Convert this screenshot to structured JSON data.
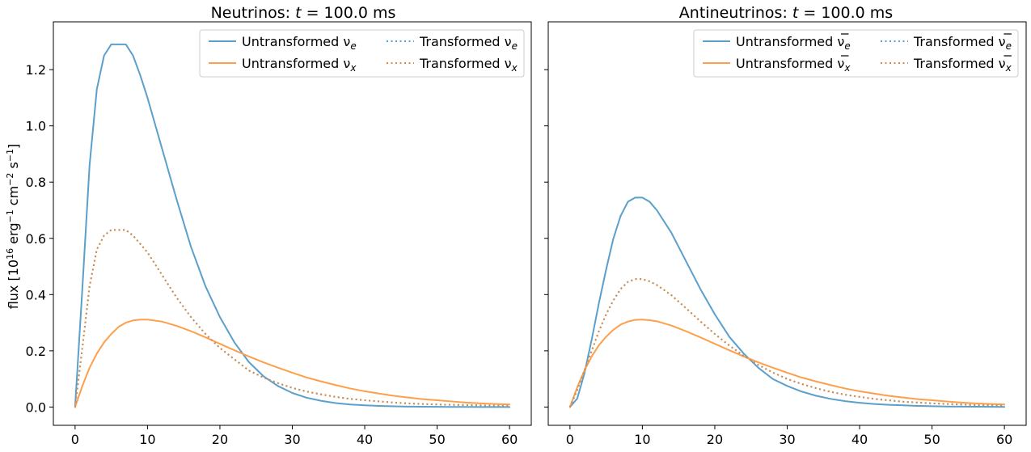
{
  "chart_data": [
    {
      "type": "line",
      "title": "Neutrinos: t = 100.0 ms",
      "title_parts": {
        "prefix": "Neutrinos: ",
        "var": "t",
        "suffix": " = 100.0 ms"
      },
      "ylabel": "flux [10",
      "ylabel_parts": {
        "a": "flux [10",
        "b": "16",
        "c": " erg",
        "d": "−1",
        "e": " cm",
        "f": "−2",
        "g": " s",
        "h": "−1",
        "i": "]"
      },
      "xlim": [
        -3,
        63
      ],
      "ylim": [
        -0.065,
        1.37
      ],
      "xticks": [
        "0",
        "10",
        "20",
        "30",
        "40",
        "50",
        "60"
      ],
      "xtick_values": [
        0,
        10,
        20,
        30,
        40,
        50,
        60
      ],
      "yticks": [
        "0.0",
        "0.2",
        "0.4",
        "0.6",
        "0.8",
        "1.0",
        "1.2"
      ],
      "ytick_values": [
        0,
        0.2,
        0.4,
        0.6,
        0.8,
        1.0,
        1.2
      ],
      "grid": false,
      "legend": "top-right",
      "x": [
        0,
        1,
        2,
        3,
        4,
        5,
        6,
        7,
        8,
        9,
        10,
        12,
        14,
        16,
        18,
        20,
        22,
        24,
        26,
        28,
        30,
        32,
        34,
        36,
        38,
        40,
        42,
        44,
        46,
        48,
        50,
        52,
        54,
        56,
        58,
        60
      ],
      "series": [
        {
          "name": "Untransformed ν",
          "sub": "e",
          "bar": false,
          "style": "solid",
          "color": "#5b9fcb",
          "values": [
            0.0,
            0.42,
            0.86,
            1.13,
            1.25,
            1.29,
            1.29,
            1.29,
            1.25,
            1.18,
            1.1,
            0.92,
            0.74,
            0.57,
            0.43,
            0.32,
            0.23,
            0.16,
            0.11,
            0.075,
            0.05,
            0.033,
            0.022,
            0.014,
            0.009,
            0.006,
            0.004,
            0.0025,
            0.0016,
            0.001,
            0.0007,
            0.0004,
            0.0003,
            0.0002,
            0.0001,
            0.0001
          ]
        },
        {
          "name": "Untransformed ν",
          "sub": "x",
          "bar": false,
          "style": "solid",
          "color": "#fd9f4b",
          "values": [
            0.0,
            0.075,
            0.14,
            0.19,
            0.23,
            0.26,
            0.285,
            0.3,
            0.308,
            0.311,
            0.311,
            0.304,
            0.289,
            0.27,
            0.248,
            0.225,
            0.202,
            0.18,
            0.159,
            0.14,
            0.122,
            0.105,
            0.091,
            0.078,
            0.066,
            0.056,
            0.048,
            0.04,
            0.034,
            0.028,
            0.024,
            0.02,
            0.016,
            0.013,
            0.011,
            0.009
          ]
        },
        {
          "name": "Transformed ν",
          "sub": "e",
          "bar": false,
          "style": "dotted",
          "color": "#5b9fcb",
          "values": [
            0.0,
            0.21,
            0.43,
            0.56,
            0.61,
            0.63,
            0.63,
            0.63,
            0.61,
            0.58,
            0.55,
            0.47,
            0.39,
            0.32,
            0.26,
            0.21,
            0.17,
            0.13,
            0.105,
            0.085,
            0.068,
            0.055,
            0.045,
            0.036,
            0.029,
            0.024,
            0.02,
            0.016,
            0.013,
            0.011,
            0.009,
            0.008,
            0.007,
            0.006,
            0.005,
            0.004
          ]
        },
        {
          "name": "Transformed ν",
          "sub": "x",
          "bar": false,
          "style": "dotted",
          "color": "#d88a47",
          "values": [
            0.0,
            0.21,
            0.43,
            0.56,
            0.61,
            0.63,
            0.63,
            0.63,
            0.61,
            0.58,
            0.55,
            0.47,
            0.39,
            0.32,
            0.26,
            0.21,
            0.17,
            0.13,
            0.105,
            0.085,
            0.068,
            0.055,
            0.045,
            0.036,
            0.029,
            0.024,
            0.02,
            0.016,
            0.013,
            0.011,
            0.009,
            0.008,
            0.007,
            0.006,
            0.005,
            0.004
          ]
        }
      ]
    },
    {
      "type": "line",
      "title": "Antineutrinos: t = 100.0 ms",
      "title_parts": {
        "prefix": "Antineutrinos: ",
        "var": "t",
        "suffix": " = 100.0 ms"
      },
      "xlim": [
        -3,
        63
      ],
      "ylim": [
        -0.065,
        1.37
      ],
      "xticks": [
        "0",
        "10",
        "20",
        "30",
        "40",
        "50",
        "60"
      ],
      "xtick_values": [
        0,
        10,
        20,
        30,
        40,
        50,
        60
      ],
      "ytick_values": [
        0,
        0.2,
        0.4,
        0.6,
        0.8,
        1.0,
        1.2
      ],
      "grid": false,
      "legend": "top-right",
      "x": [
        0,
        1,
        2,
        3,
        4,
        5,
        6,
        7,
        8,
        9,
        10,
        11,
        12,
        14,
        16,
        18,
        20,
        22,
        24,
        26,
        28,
        30,
        32,
        34,
        36,
        38,
        40,
        42,
        44,
        46,
        48,
        50,
        52,
        54,
        56,
        58,
        60
      ],
      "series": [
        {
          "name": "Untransformed ν",
          "sub": "e",
          "bar": true,
          "style": "solid",
          "color": "#5b9fcb",
          "values": [
            0.0,
            0.03,
            0.12,
            0.24,
            0.37,
            0.49,
            0.6,
            0.68,
            0.73,
            0.745,
            0.745,
            0.73,
            0.7,
            0.62,
            0.52,
            0.42,
            0.33,
            0.25,
            0.19,
            0.14,
            0.1,
            0.075,
            0.055,
            0.04,
            0.029,
            0.021,
            0.015,
            0.011,
            0.008,
            0.006,
            0.004,
            0.003,
            0.002,
            0.0015,
            0.001,
            0.0008,
            0.0006
          ]
        },
        {
          "name": "Untransformed ν",
          "sub": "x",
          "bar": true,
          "style": "solid",
          "color": "#fd9f4b",
          "values": [
            0.0,
            0.07,
            0.13,
            0.18,
            0.22,
            0.25,
            0.275,
            0.293,
            0.304,
            0.31,
            0.311,
            0.309,
            0.305,
            0.29,
            0.27,
            0.248,
            0.225,
            0.202,
            0.18,
            0.159,
            0.14,
            0.122,
            0.105,
            0.091,
            0.078,
            0.066,
            0.056,
            0.048,
            0.04,
            0.034,
            0.028,
            0.024,
            0.02,
            0.016,
            0.013,
            0.011,
            0.009
          ]
        },
        {
          "name": "Transformed ν",
          "sub": "e",
          "bar": true,
          "style": "dotted",
          "color": "#5b9fcb",
          "values": [
            0.0,
            0.06,
            0.13,
            0.2,
            0.27,
            0.33,
            0.38,
            0.42,
            0.445,
            0.455,
            0.455,
            0.447,
            0.434,
            0.398,
            0.352,
            0.305,
            0.26,
            0.219,
            0.182,
            0.15,
            0.123,
            0.1,
            0.082,
            0.067,
            0.054,
            0.044,
            0.036,
            0.029,
            0.024,
            0.019,
            0.016,
            0.013,
            0.011,
            0.009,
            0.007,
            0.006,
            0.005
          ]
        },
        {
          "name": "Transformed ν",
          "sub": "x",
          "bar": true,
          "style": "dotted",
          "color": "#d88a47",
          "values": [
            0.0,
            0.06,
            0.13,
            0.2,
            0.27,
            0.33,
            0.38,
            0.42,
            0.445,
            0.455,
            0.455,
            0.447,
            0.434,
            0.398,
            0.352,
            0.305,
            0.26,
            0.219,
            0.182,
            0.15,
            0.123,
            0.1,
            0.082,
            0.067,
            0.054,
            0.044,
            0.036,
            0.029,
            0.024,
            0.019,
            0.016,
            0.013,
            0.011,
            0.009,
            0.007,
            0.006,
            0.005
          ]
        }
      ]
    }
  ]
}
